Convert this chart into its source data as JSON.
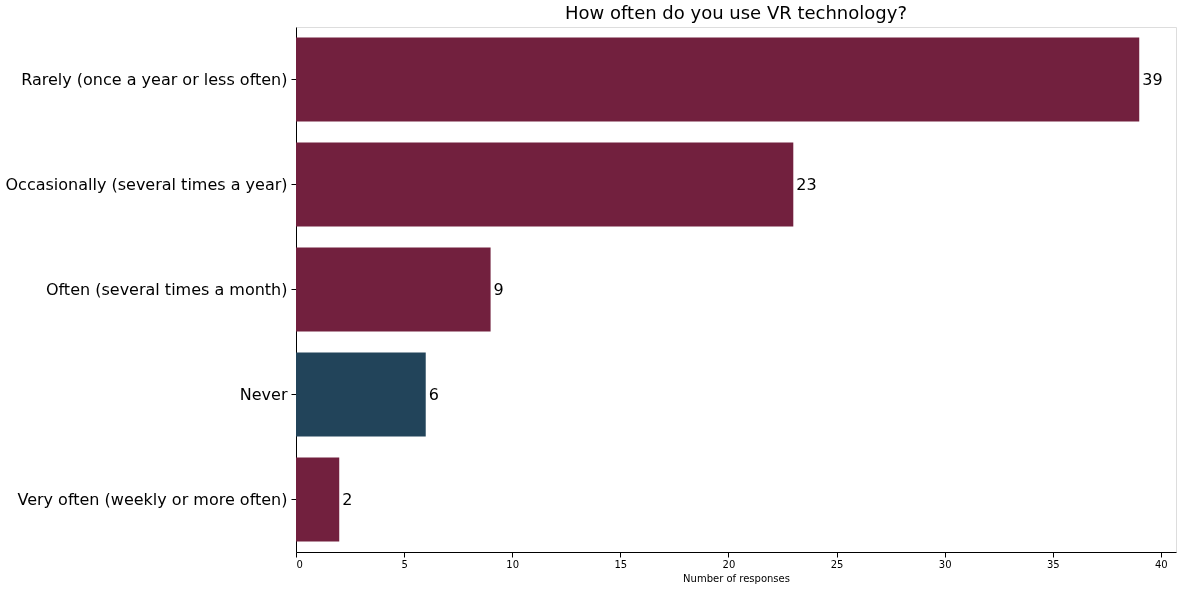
{
  "chart_data": {
    "type": "bar",
    "orientation": "horizontal",
    "title": "How often do you use VR technology?",
    "xlabel": "Number of responses",
    "categories": [
      "Rarely (once a year or less often)",
      "Occasionally (several times a year)",
      "Often (several times a month)",
      "Never",
      "Very often (weekly or more often)"
    ],
    "values": [
      39,
      23,
      9,
      6,
      2
    ],
    "colors": [
      "#72203e",
      "#72203e",
      "#72203e",
      "#22445a",
      "#72203e"
    ],
    "xlim": [
      0,
      40.7
    ],
    "xticks": [
      0,
      5,
      10,
      15,
      20,
      25,
      30,
      35,
      40
    ],
    "data_labels": true,
    "grid": false,
    "legend": false
  }
}
